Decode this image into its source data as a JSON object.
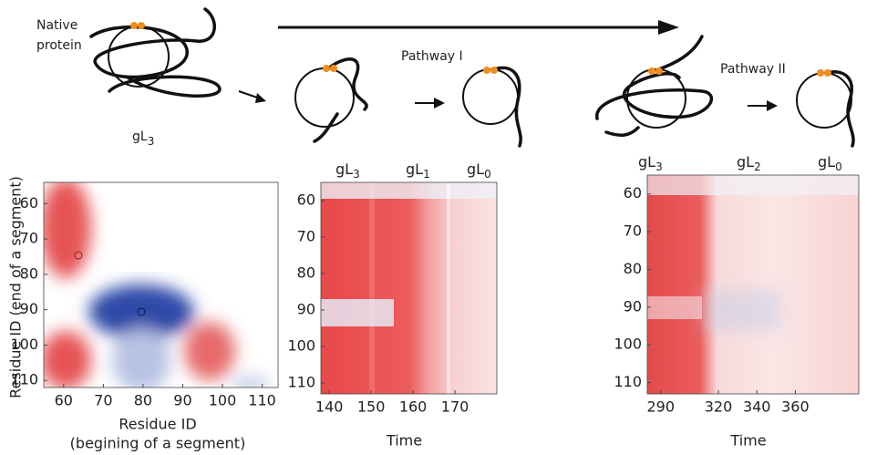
{
  "figure": {
    "native_label": [
      "Native",
      "protein"
    ],
    "native_state": {
      "base": "gL",
      "sub": "3"
    },
    "pathway_1": "Pathway I",
    "pathway_2": "Pathway II",
    "panels": [
      {
        "ylabel": "Residue ID (end of a segment)",
        "xlabel": [
          "Residue ID",
          "(begining of a segment)"
        ],
        "xlim": [
          55,
          114
        ],
        "xticks": [
          60,
          70,
          80,
          90,
          100,
          110
        ],
        "ylim": [
          54,
          112
        ],
        "yticks": [
          60,
          70,
          80,
          90,
          100,
          110
        ]
      },
      {
        "state_labels": [
          {
            "base": "gL",
            "sub": "3"
          },
          {
            "base": "gL",
            "sub": "1"
          },
          {
            "base": "gL",
            "sub": "0"
          }
        ],
        "xlabel": [
          "Time"
        ],
        "xlim": [
          138,
          180
        ],
        "xticks": [
          140,
          150,
          160,
          170
        ],
        "ylim": [
          55,
          113
        ],
        "yticks": [
          60,
          70,
          80,
          90,
          100,
          110
        ]
      },
      {
        "state_labels": [
          {
            "base": "gL",
            "sub": "3"
          },
          {
            "base": "gL",
            "sub": "2"
          },
          {
            "base": "gL",
            "sub": "0"
          }
        ],
        "xlabel": [
          "Time"
        ],
        "xlim": [
          283,
          393
        ],
        "xticks": [
          290,
          320,
          340,
          360
        ],
        "ylim": [
          55,
          113
        ],
        "yticks": [
          60,
          70,
          80,
          90,
          100,
          110
        ]
      }
    ]
  }
}
